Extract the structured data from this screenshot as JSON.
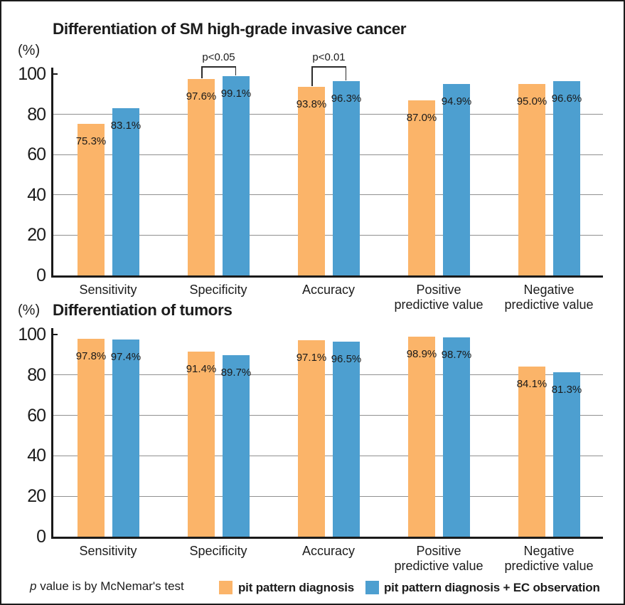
{
  "colors": {
    "series1": "#FBB469",
    "series2": "#4D9FD0",
    "gridline": "#909090",
    "axis": "#1a1a1a"
  },
  "chart_data": [
    {
      "type": "bar",
      "title": "Differentiation of SM high-grade invasive cancer",
      "axis_unit": "(%)",
      "ylim": [
        0,
        100
      ],
      "yticks": [
        0,
        20,
        40,
        60,
        80,
        100
      ],
      "grid": "horizontal",
      "legend_position": "bottom-shared",
      "categories": [
        "Sensitivity",
        "Specificity",
        "Accuracy",
        "Positive\npredictive value",
        "Negative\npredictive value"
      ],
      "series": [
        {
          "name": "pit pattern diagnosis",
          "values": [
            75.3,
            97.6,
            93.8,
            87.0,
            95.0
          ],
          "value_labels": [
            "75.3%",
            "97.6%",
            "93.8%",
            "87.0%",
            "95.0%"
          ]
        },
        {
          "name": "pit pattern diagnosis + EC observation",
          "values": [
            83.1,
            99.1,
            96.3,
            94.9,
            96.6
          ],
          "value_labels": [
            "83.1%",
            "99.1%",
            "96.3%",
            "94.9%",
            "96.6%"
          ]
        }
      ],
      "significance": [
        {
          "category_index": 1,
          "label": "p<0.05"
        },
        {
          "category_index": 2,
          "label": "p<0.01"
        }
      ]
    },
    {
      "type": "bar",
      "title": "Differentiation of tumors",
      "axis_unit": "(%)",
      "ylim": [
        0,
        100
      ],
      "yticks": [
        0,
        20,
        40,
        60,
        80,
        100
      ],
      "grid": "horizontal",
      "legend_position": "bottom-shared",
      "categories": [
        "Sensitivity",
        "Specificity",
        "Accuracy",
        "Positive\npredictive value",
        "Negative\npredictive value"
      ],
      "series": [
        {
          "name": "pit pattern diagnosis",
          "values": [
            97.8,
            91.4,
            97.1,
            98.9,
            84.1
          ],
          "value_labels": [
            "97.8%",
            "91.4%",
            "97.1%",
            "98.9%",
            "84.1%"
          ]
        },
        {
          "name": "pit pattern diagnosis + EC observation",
          "values": [
            97.4,
            89.7,
            96.5,
            98.7,
            81.3
          ],
          "value_labels": [
            "97.4%",
            "89.7%",
            "96.5%",
            "98.7%",
            "81.3%"
          ]
        }
      ],
      "significance": []
    }
  ],
  "legend": {
    "items": [
      {
        "label": "pit pattern diagnosis",
        "color": "#FBB469"
      },
      {
        "label": "pit pattern diagnosis + EC observation",
        "color": "#4D9FD0"
      }
    ]
  },
  "footer": {
    "note_italic": "p",
    "note_text": " value is by McNemar's test"
  }
}
